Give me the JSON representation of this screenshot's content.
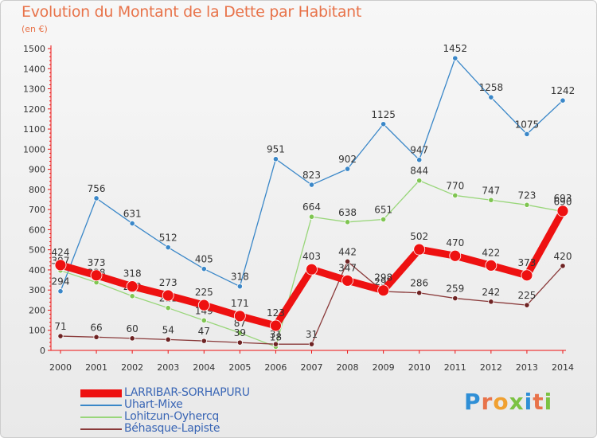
{
  "chart_data": {
    "type": "line",
    "title": "Evolution du Montant de la Dette par Habitant",
    "unit_label": "(en €)",
    "x": [
      "2000",
      "2001",
      "2002",
      "2003",
      "2004",
      "2005",
      "2006",
      "2007",
      "2008",
      "2009",
      "2010",
      "2011",
      "2012",
      "2013",
      "2014"
    ],
    "ylim": [
      0,
      1500
    ],
    "yticks": [
      0,
      100,
      200,
      300,
      400,
      500,
      600,
      700,
      800,
      900,
      1000,
      1100,
      1200,
      1300,
      1400,
      1500
    ],
    "grid": false,
    "legend_position": "bottom-left",
    "series": [
      {
        "name": "Uhart-Mixe",
        "color": "#3a87c8",
        "point_color": "#3a87c8",
        "values": [
          294,
          756,
          631,
          512,
          405,
          318,
          951,
          823,
          902,
          1125,
          947,
          1452,
          1258,
          1075,
          1242
        ]
      },
      {
        "name": "Lohitzun-Oyhercq",
        "color": "#99d67a",
        "point_color": "#7fc551",
        "values": [
          397,
          338,
          270,
          211,
          149,
          87,
          18,
          664,
          638,
          651,
          844,
          770,
          747,
          723,
          690
        ]
      },
      {
        "name": "Béhasque-Lapiste",
        "color": "#8a3a3a",
        "point_color": "#6e2323",
        "values": [
          71,
          66,
          60,
          54,
          47,
          39,
          31,
          31,
          442,
          293,
          286,
          259,
          242,
          225,
          420
        ]
      },
      {
        "name": "LARRIBAR-SORHAPURU",
        "color": "#ee1111",
        "point_color": "#ee1111",
        "values": [
          424,
          373,
          318,
          273,
          225,
          171,
          123,
          403,
          347,
          298,
          502,
          470,
          422,
          373,
          693
        ]
      }
    ]
  },
  "legend": {
    "items": [
      {
        "label": "LARRIBAR-SORHAPURU",
        "color": "#ee1111"
      },
      {
        "label": "Uhart-Mixe",
        "color": "#3a87c8"
      },
      {
        "label": "Lohitzun-Oyhercq",
        "color": "#99d67a"
      },
      {
        "label": "Béhasque-Lapiste",
        "color": "#8a3a3a"
      }
    ]
  },
  "brand": {
    "text": "Proxiti",
    "colors": [
      "#2f8fd6",
      "#e8734a",
      "#f0a030",
      "#7cc242",
      "#2f8fd6",
      "#e8734a",
      "#7cc242"
    ]
  }
}
